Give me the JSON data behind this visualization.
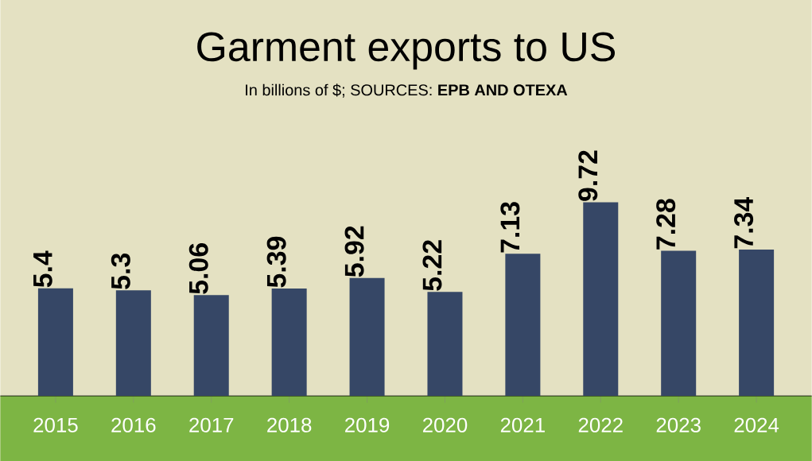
{
  "chart_data": {
    "type": "bar",
    "title": "Garment exports to US",
    "subtitle": "In billions of $; SOURCES: **EPB AND OTEXA**",
    "categories": [
      "2015",
      "2016",
      "2017",
      "2018",
      "2019",
      "2020",
      "2021",
      "2022",
      "2023",
      "2024"
    ],
    "values": [
      5.4,
      5.3,
      5.06,
      5.39,
      5.92,
      5.22,
      7.13,
      9.72,
      7.28,
      7.34
    ],
    "color": "#364766",
    "data_labels": true
  }
}
